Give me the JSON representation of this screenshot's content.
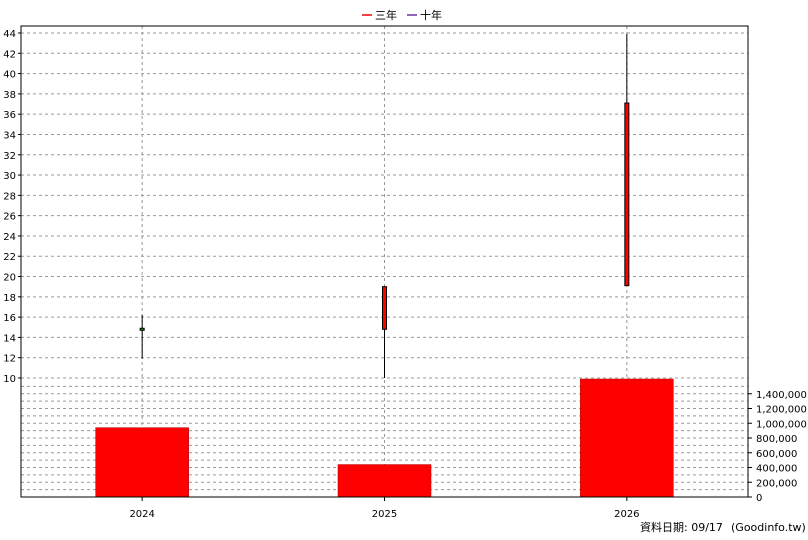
{
  "legend": [
    {
      "label": "三年",
      "color": "#ff0000"
    },
    {
      "label": "十年",
      "color": "#7030a0"
    }
  ],
  "footer": {
    "label": "資料日期: 09/17",
    "source": "(Goodinfo.tw)"
  },
  "chart_data": {
    "type": "candlestick+bar",
    "categories": [
      "2024",
      "2025",
      "2026"
    ],
    "price_axis": {
      "ylim": [
        10,
        44
      ],
      "ticks": [
        10,
        12,
        14,
        16,
        18,
        20,
        22,
        24,
        26,
        28,
        30,
        32,
        34,
        36,
        38,
        40,
        42,
        44
      ],
      "tick_labels": [
        "10",
        "12",
        "14",
        "16",
        "18",
        "20",
        "22",
        "24",
        "26",
        "28",
        "30",
        "32",
        "34",
        "36",
        "38",
        "40",
        "42",
        "44"
      ]
    },
    "volume_axis": {
      "ylim": [
        0,
        1600000
      ],
      "ticks": [
        0,
        200000,
        400000,
        600000,
        800000,
        1000000,
        1200000,
        1400000
      ],
      "tick_labels": [
        "0",
        "200,000",
        "400,000",
        "600,000",
        "800,000",
        "1,000,000",
        "1,200,000",
        "1,400,000"
      ]
    },
    "candles": [
      {
        "x": "2024",
        "open": 14.7,
        "close": 14.9,
        "high": 16.2,
        "low": 11.9,
        "color": "#00aa00"
      },
      {
        "x": "2025",
        "open": 14.8,
        "close": 19.0,
        "high": 19.0,
        "low": 10.0,
        "color": "#ff0000"
      },
      {
        "x": "2026",
        "open": 19.1,
        "close": 37.1,
        "high": 43.9,
        "low": 19.1,
        "color": "#ff0000"
      }
    ],
    "volume": [
      {
        "x": "2024",
        "value": 940000
      },
      {
        "x": "2025",
        "value": 440000
      },
      {
        "x": "2026",
        "value": 1600000
      }
    ],
    "grid": true,
    "legend_position": "top-center"
  }
}
